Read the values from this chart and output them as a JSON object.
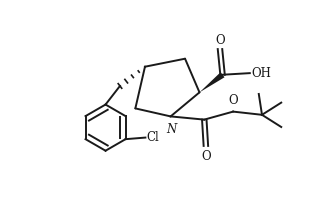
{
  "background": "#ffffff",
  "line_color": "#1a1a1a",
  "line_width": 1.4,
  "figsize": [
    3.22,
    2.2
  ],
  "dpi": 100,
  "xlim": [
    0,
    10
  ],
  "ylim": [
    0,
    6.8
  ]
}
